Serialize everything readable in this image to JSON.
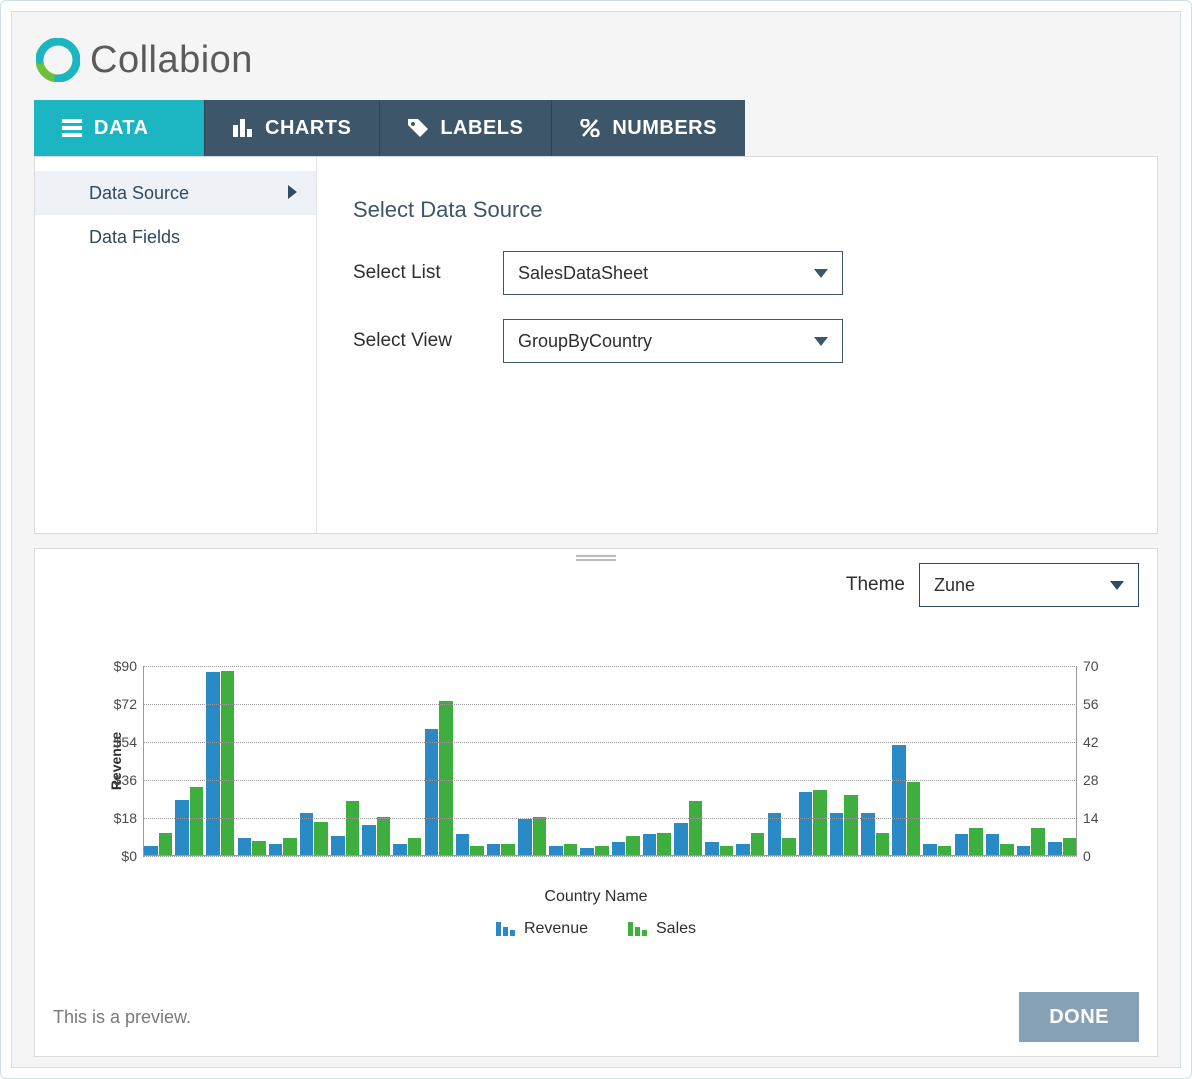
{
  "brand": {
    "name": "Collabion",
    "logo_colors": [
      "#6fbf3a",
      "#1bb6c1"
    ]
  },
  "tabs": {
    "items": [
      {
        "label": "DATA",
        "icon": "list",
        "active": true
      },
      {
        "label": "CHARTS",
        "icon": "bars",
        "active": false
      },
      {
        "label": "LABELS",
        "icon": "tag",
        "active": false
      },
      {
        "label": "NUMBERS",
        "icon": "percent",
        "active": false
      }
    ],
    "active_bg": "#1bb6c1",
    "inactive_bg": "#3e5669"
  },
  "sidebar": {
    "items": [
      {
        "label": "Data Source",
        "selected": true
      },
      {
        "label": "Data Fields",
        "selected": false
      }
    ]
  },
  "form": {
    "title": "Select Data Source",
    "list_label": "Select List",
    "list_value": "SalesDataSheet",
    "view_label": "Select View",
    "view_value": "GroupByCountry"
  },
  "theme": {
    "label": "Theme",
    "value": "Zune"
  },
  "footer": {
    "preview_note": "This is a preview.",
    "done_label": "DONE"
  },
  "chart": {
    "type": "grouped-bar-dual-axis",
    "y_left": {
      "title": "Revenue",
      "ticks": [
        0,
        18,
        36,
        54,
        72,
        90
      ],
      "tick_prefix": "$",
      "max": 90
    },
    "y_right": {
      "ticks": [
        0,
        14,
        28,
        42,
        56,
        70
      ],
      "max": 70
    },
    "x_title": "Country Name",
    "series": [
      {
        "name": "Revenue",
        "color": "#2a8ac6",
        "axis": "left"
      },
      {
        "name": "Sales",
        "color": "#3eae3e",
        "axis": "right"
      }
    ],
    "grid_color": "#9a9a9a",
    "background_color": "#ffffff",
    "data": [
      {
        "revenue": 4,
        "sales": 8
      },
      {
        "revenue": 26,
        "sales": 25
      },
      {
        "revenue": 87,
        "sales": 68
      },
      {
        "revenue": 8,
        "sales": 5
      },
      {
        "revenue": 5,
        "sales": 6
      },
      {
        "revenue": 20,
        "sales": 12
      },
      {
        "revenue": 9,
        "sales": 20
      },
      {
        "revenue": 14,
        "sales": 14
      },
      {
        "revenue": 5,
        "sales": 6
      },
      {
        "revenue": 60,
        "sales": 57
      },
      {
        "revenue": 10,
        "sales": 3
      },
      {
        "revenue": 5,
        "sales": 4
      },
      {
        "revenue": 17,
        "sales": 14
      },
      {
        "revenue": 4,
        "sales": 4
      },
      {
        "revenue": 3,
        "sales": 3
      },
      {
        "revenue": 6,
        "sales": 7
      },
      {
        "revenue": 10,
        "sales": 8
      },
      {
        "revenue": 15,
        "sales": 20
      },
      {
        "revenue": 6,
        "sales": 3
      },
      {
        "revenue": 5,
        "sales": 8
      },
      {
        "revenue": 20,
        "sales": 6
      },
      {
        "revenue": 30,
        "sales": 24
      },
      {
        "revenue": 20,
        "sales": 22
      },
      {
        "revenue": 20,
        "sales": 8
      },
      {
        "revenue": 52,
        "sales": 27
      },
      {
        "revenue": 5,
        "sales": 3
      },
      {
        "revenue": 10,
        "sales": 10
      },
      {
        "revenue": 10,
        "sales": 4
      },
      {
        "revenue": 4,
        "sales": 10
      },
      {
        "revenue": 6,
        "sales": 6
      }
    ]
  }
}
